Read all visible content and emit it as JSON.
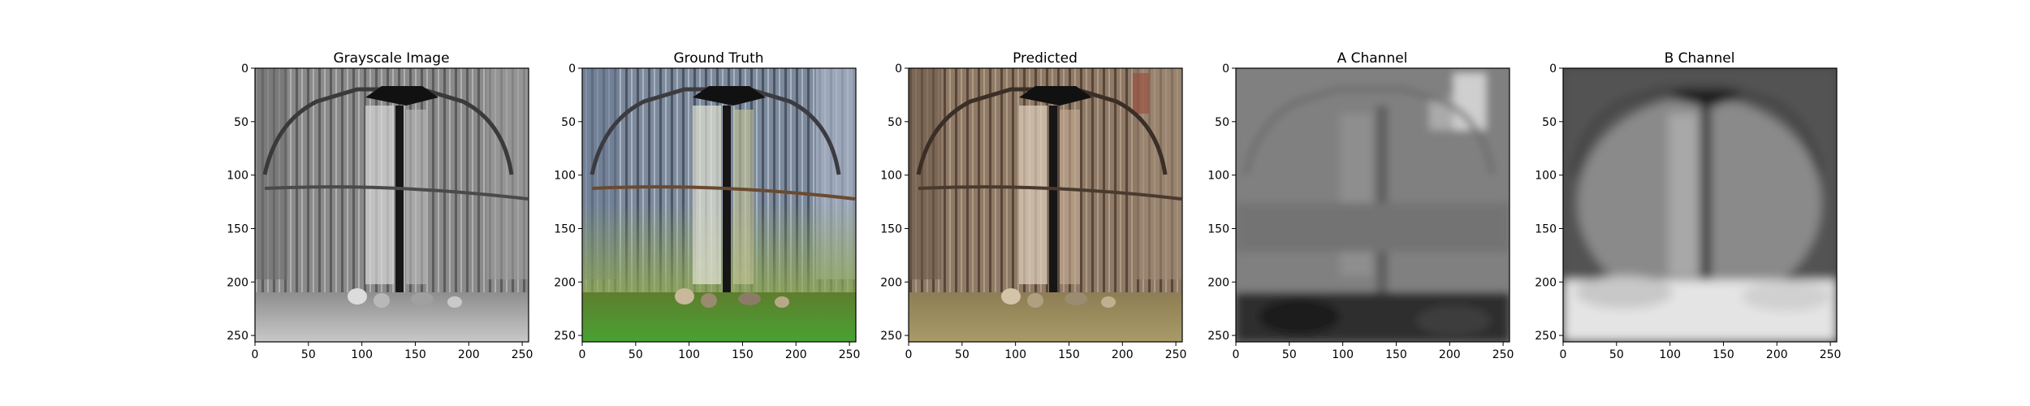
{
  "figure": {
    "panels": [
      {
        "title": "Grayscale Image",
        "image": "grayscale-barn-door"
      },
      {
        "title": "Ground Truth",
        "image": "color-barn-door-green-grass"
      },
      {
        "title": "Predicted",
        "image": "sepia-barn-door-brown-grass"
      },
      {
        "title": "A Channel",
        "image": "blurry-gray-a-channel-map"
      },
      {
        "title": "B Channel",
        "image": "blurry-gray-b-channel-map"
      }
    ]
  },
  "chart_data": [
    {
      "type": "image",
      "title": "Grayscale Image",
      "xlim": [
        0,
        256
      ],
      "ylim": [
        256,
        0
      ],
      "xticks": [
        "0",
        "50",
        "100",
        "150",
        "200",
        "250"
      ],
      "yticks": [
        "0",
        "50",
        "100",
        "150",
        "200",
        "250"
      ],
      "grid": false
    },
    {
      "type": "image",
      "title": "Ground Truth",
      "xlim": [
        0,
        256
      ],
      "ylim": [
        256,
        0
      ],
      "xticks": [
        "0",
        "50",
        "100",
        "150",
        "200",
        "250"
      ],
      "yticks": [
        "0",
        "50",
        "100",
        "150",
        "200",
        "250"
      ],
      "grid": false
    },
    {
      "type": "image",
      "title": "Predicted",
      "xlim": [
        0,
        256
      ],
      "ylim": [
        256,
        0
      ],
      "xticks": [
        "0",
        "50",
        "100",
        "150",
        "200",
        "250"
      ],
      "yticks": [
        "0",
        "50",
        "100",
        "150",
        "200",
        "250"
      ],
      "grid": false
    },
    {
      "type": "image",
      "title": "A Channel",
      "xlim": [
        0,
        256
      ],
      "ylim": [
        256,
        0
      ],
      "xticks": [
        "0",
        "50",
        "100",
        "150",
        "200",
        "250"
      ],
      "yticks": [
        "0",
        "50",
        "100",
        "150",
        "200",
        "250"
      ],
      "grid": false
    },
    {
      "type": "image",
      "title": "B Channel",
      "xlim": [
        0,
        256
      ],
      "ylim": [
        256,
        0
      ],
      "xticks": [
        "0",
        "50",
        "100",
        "150",
        "200",
        "250"
      ],
      "yticks": [
        "0",
        "50",
        "100",
        "150",
        "200",
        "250"
      ],
      "grid": false
    }
  ]
}
